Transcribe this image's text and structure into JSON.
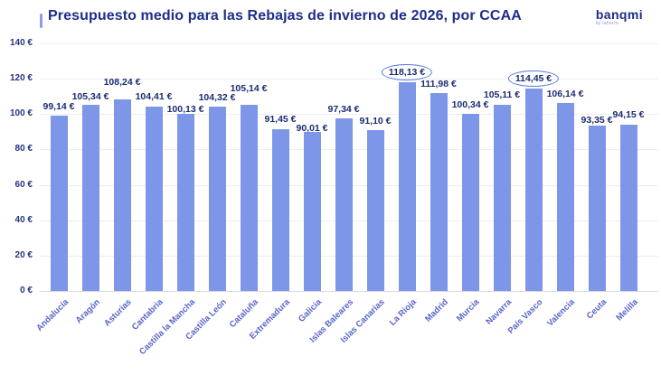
{
  "header": {
    "title": "Presupuesto medio para las Rebajas de invierno de 2026, por CCAA",
    "logo": {
      "name": "banqmi",
      "tagline": "by iahorro"
    }
  },
  "colors": {
    "bar": "#7d96e8",
    "title": "#1f2d87",
    "value_label": "#1c2b73",
    "x_label": "#5864c8",
    "y_tick": "#243380",
    "gridline": "#ededf2",
    "baseline": "#d7d8e2",
    "highlight_ring": "#5a7ad6",
    "title_accent": "#8c9cec"
  },
  "chart_data": {
    "type": "bar",
    "title": "Presupuesto medio para las Rebajas de invierno de 2026, por CCAA",
    "xlabel": "",
    "ylabel": "",
    "currency": "EUR",
    "grid": true,
    "legend": "none",
    "ylim": [
      0,
      140
    ],
    "y_ticks": [
      "0 €",
      "20 €",
      "40 €",
      "60 €",
      "80 €",
      "100 €",
      "120 €",
      "140 €"
    ],
    "categories": [
      "Andalucía",
      "Aragón",
      "Asturias",
      "Cantabria",
      "Castilla la Mancha",
      "Castilla León",
      "Cataluña",
      "Extremadura",
      "Galicia",
      "Islas Baleares",
      "Islas Canarias",
      "La Rioja",
      "Madrid",
      "Murcia",
      "Navarra",
      "País Vasco",
      "Valencia",
      "Ceuta",
      "Melilla"
    ],
    "values": [
      99.14,
      105.34,
      108.24,
      104.41,
      100.13,
      104.32,
      105.14,
      91.45,
      90.01,
      97.34,
      91.1,
      118.13,
      111.98,
      100.34,
      105.11,
      114.45,
      106.14,
      93.35,
      94.15
    ],
    "value_labels": [
      "99,14 €",
      "105,34 €",
      "108,24 €",
      "104,41 €",
      "100,13 €",
      "104,32 €",
      "105,14 €",
      "91,45 €",
      "90,01 €",
      "97,34 €",
      "91,10 €",
      "118,13 €",
      "111,98 €",
      "100,34 €",
      "105,11 €",
      "114,45 €",
      "106,14 €",
      "93,35 €",
      "94,15 €"
    ],
    "highlighted": [
      "La Rioja",
      "País Vasco"
    ],
    "label_gap": [
      3,
      2,
      12,
      4,
      -2,
      3,
      11,
      4,
      -3,
      3,
      3,
      1,
      3,
      3,
      4,
      1,
      3,
      -1,
      4
    ]
  }
}
